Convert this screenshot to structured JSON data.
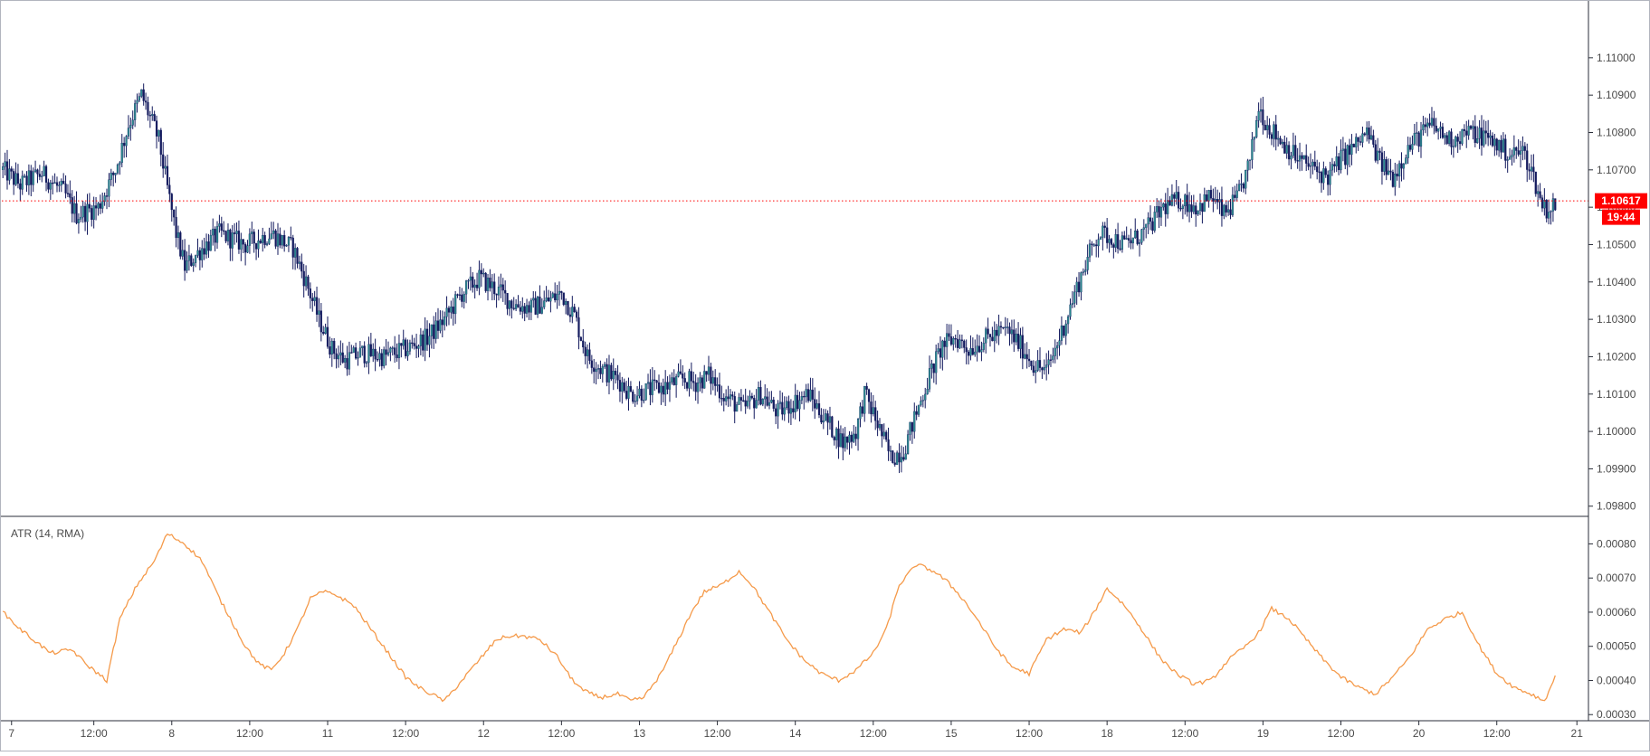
{
  "chart_data": [
    {
      "type": "candlestick",
      "title": "",
      "grid": false,
      "colors": {
        "up_body": "#2a8a8f",
        "down_body": "#131a5e",
        "wick": "#131a5e",
        "price_line": "#ff0000",
        "price_badge": "#ff0000"
      },
      "y_ticks": [
        "1.11000",
        "1.10900",
        "1.10800",
        "1.10700",
        "1.10600",
        "1.10500",
        "1.10400",
        "1.10300",
        "1.10200",
        "1.10100",
        "1.10000",
        "1.09900",
        "1.09800"
      ],
      "ylim": [
        1.0978,
        1.1114
      ],
      "current_price": "1.10617",
      "current_price_value": 1.10617,
      "countdown": "19:44",
      "path_anchors": [
        [
          0,
          1.107
        ],
        [
          8,
          1.1066
        ],
        [
          18,
          1.1069
        ],
        [
          28,
          1.1064
        ],
        [
          34,
          1.1058
        ],
        [
          44,
          1.106
        ],
        [
          52,
          1.107
        ],
        [
          58,
          1.1082
        ],
        [
          64,
          1.109
        ],
        [
          72,
          1.1078
        ],
        [
          76,
          1.1065
        ],
        [
          80,
          1.1053
        ],
        [
          84,
          1.1044
        ],
        [
          92,
          1.1049
        ],
        [
          100,
          1.1053
        ],
        [
          112,
          1.105
        ],
        [
          124,
          1.1053
        ],
        [
          134,
          1.1049
        ],
        [
          140,
          1.104
        ],
        [
          146,
          1.103
        ],
        [
          152,
          1.1022
        ],
        [
          158,
          1.1019
        ],
        [
          166,
          1.1021
        ],
        [
          176,
          1.102
        ],
        [
          186,
          1.1022
        ],
        [
          196,
          1.1025
        ],
        [
          204,
          1.103
        ],
        [
          212,
          1.1037
        ],
        [
          220,
          1.1041
        ],
        [
          228,
          1.1038
        ],
        [
          236,
          1.1034
        ],
        [
          244,
          1.1033
        ],
        [
          252,
          1.1035
        ],
        [
          258,
          1.1037
        ],
        [
          264,
          1.1031
        ],
        [
          270,
          1.102
        ],
        [
          278,
          1.1016
        ],
        [
          284,
          1.1014
        ],
        [
          290,
          1.101
        ],
        [
          298,
          1.1011
        ],
        [
          306,
          1.1012
        ],
        [
          314,
          1.1014
        ],
        [
          320,
          1.1013
        ],
        [
          326,
          1.1015
        ],
        [
          334,
          1.1009
        ],
        [
          342,
          1.1006
        ],
        [
          350,
          1.101
        ],
        [
          358,
          1.1005
        ],
        [
          366,
          1.1008
        ],
        [
          372,
          1.101
        ],
        [
          380,
          1.1003
        ],
        [
          388,
          1.0997
        ],
        [
          394,
          1.1
        ],
        [
          398,
          1.101
        ],
        [
          404,
          1.1002
        ],
        [
          410,
          1.0993
        ],
        [
          416,
          1.0995
        ],
        [
          422,
          1.1005
        ],
        [
          428,
          1.1015
        ],
        [
          434,
          1.1023
        ],
        [
          440,
          1.1025
        ],
        [
          446,
          1.1022
        ],
        [
          452,
          1.1024
        ],
        [
          458,
          1.1026
        ],
        [
          464,
          1.1027
        ],
        [
          470,
          1.1023
        ],
        [
          476,
          1.1018
        ],
        [
          482,
          1.1016
        ],
        [
          488,
          1.1025
        ],
        [
          494,
          1.1035
        ],
        [
          500,
          1.1045
        ],
        [
          506,
          1.1053
        ],
        [
          512,
          1.1052
        ],
        [
          518,
          1.105
        ],
        [
          524,
          1.1052
        ],
        [
          530,
          1.1055
        ],
        [
          536,
          1.106
        ],
        [
          544,
          1.1062
        ],
        [
          552,
          1.106
        ],
        [
          558,
          1.1063
        ],
        [
          564,
          1.1058
        ],
        [
          570,
          1.1062
        ],
        [
          576,
          1.1072
        ],
        [
          580,
          1.1087
        ],
        [
          584,
          1.1082
        ],
        [
          590,
          1.1078
        ],
        [
          598,
          1.1073
        ],
        [
          606,
          1.107
        ],
        [
          612,
          1.1068
        ],
        [
          618,
          1.1073
        ],
        [
          624,
          1.1076
        ],
        [
          630,
          1.108
        ],
        [
          636,
          1.1072
        ],
        [
          642,
          1.1068
        ],
        [
          648,
          1.1075
        ],
        [
          654,
          1.1079
        ],
        [
          660,
          1.1082
        ],
        [
          668,
          1.1078
        ],
        [
          676,
          1.108
        ],
        [
          684,
          1.1079
        ],
        [
          690,
          1.1077
        ],
        [
          696,
          1.1074
        ],
        [
          702,
          1.1075
        ],
        [
          706,
          1.107
        ],
        [
          710,
          1.1062
        ],
        [
          714,
          1.1059
        ],
        [
          717,
          1.1061
        ]
      ],
      "candle_count": 718,
      "last_candle_index": 717
    },
    {
      "type": "line",
      "legend_label": "ATR (14, RMA)",
      "line_color": "#f59a4a",
      "y_ticks": [
        "0.00080",
        "0.00070",
        "0.00060",
        "0.00050",
        "0.00040",
        "0.00030"
      ],
      "ylim": [
        0.00029,
        0.00087
      ],
      "x": [
        0,
        8,
        14,
        22,
        32,
        38,
        48,
        54,
        62,
        70,
        76,
        84,
        92,
        100,
        106,
        112,
        118,
        124,
        130,
        136,
        142,
        148,
        154,
        162,
        170,
        178,
        186,
        192,
        198,
        204,
        212,
        220,
        228,
        234,
        240,
        248,
        256,
        262,
        268,
        276,
        284,
        290,
        296,
        304,
        312,
        318,
        324,
        332,
        340,
        346,
        354,
        362,
        370,
        378,
        386,
        394,
        402,
        408,
        414,
        422,
        430,
        436,
        442,
        450,
        458,
        466,
        474,
        482,
        490,
        498,
        504,
        510,
        518,
        526,
        534,
        542,
        550,
        558,
        566,
        574,
        580,
        586,
        594,
        602,
        610,
        618,
        626,
        634,
        642,
        650,
        658,
        666,
        674,
        682,
        690,
        698,
        706,
        712,
        717
      ],
      "values": [
        0.0006,
        0.00055,
        0.00052,
        0.00048,
        0.00049,
        0.00045,
        0.0004,
        0.00058,
        0.00068,
        0.00075,
        0.00083,
        0.0008,
        0.00075,
        0.00064,
        0.00057,
        0.0005,
        0.00045,
        0.00043,
        0.00048,
        0.00055,
        0.00064,
        0.00066,
        0.00065,
        0.00062,
        0.00055,
        0.00048,
        0.00041,
        0.00038,
        0.00036,
        0.00034,
        0.0004,
        0.00046,
        0.00052,
        0.00053,
        0.00053,
        0.00052,
        0.00047,
        0.00041,
        0.00037,
        0.00035,
        0.00036,
        0.00034,
        0.00035,
        0.00042,
        0.00052,
        0.0006,
        0.00066,
        0.00068,
        0.00072,
        0.00068,
        0.0006,
        0.00052,
        0.00046,
        0.00042,
        0.0004,
        0.00043,
        0.00048,
        0.00055,
        0.00068,
        0.00074,
        0.00072,
        0.00069,
        0.00065,
        0.00058,
        0.0005,
        0.00044,
        0.00042,
        0.00052,
        0.00055,
        0.00054,
        0.0006,
        0.00067,
        0.00062,
        0.00055,
        0.00047,
        0.00042,
        0.00039,
        0.0004,
        0.00046,
        0.0005,
        0.00054,
        0.00061,
        0.00058,
        0.00052,
        0.00046,
        0.00041,
        0.00038,
        0.00036,
        0.00041,
        0.00047,
        0.00055,
        0.00058,
        0.0006,
        0.0005,
        0.00042,
        0.00038,
        0.00036,
        0.00034,
        0.00041
      ]
    }
  ],
  "x_axis": {
    "ticks": [
      {
        "label": "7",
        "index": 4
      },
      {
        "label": "12:00",
        "index": 42
      },
      {
        "label": "8",
        "index": 78
      },
      {
        "label": "12:00",
        "index": 114
      },
      {
        "label": "11",
        "index": 150
      },
      {
        "label": "12:00",
        "index": 186
      },
      {
        "label": "12",
        "index": 222
      },
      {
        "label": "12:00",
        "index": 258
      },
      {
        "label": "13",
        "index": 294
      },
      {
        "label": "12:00",
        "index": 330
      },
      {
        "label": "14",
        "index": 366
      },
      {
        "label": "12:00",
        "index": 402
      },
      {
        "label": "15",
        "index": 438
      },
      {
        "label": "12:00",
        "index": 474
      },
      {
        "label": "18",
        "index": 510
      },
      {
        "label": "12:00",
        "index": 546
      },
      {
        "label": "19",
        "index": 582
      },
      {
        "label": "12:00",
        "index": 618
      },
      {
        "label": "20",
        "index": 654
      },
      {
        "label": "12:00",
        "index": 690
      },
      {
        "label": "21",
        "index": 727
      }
    ],
    "visible_slots": 732
  }
}
